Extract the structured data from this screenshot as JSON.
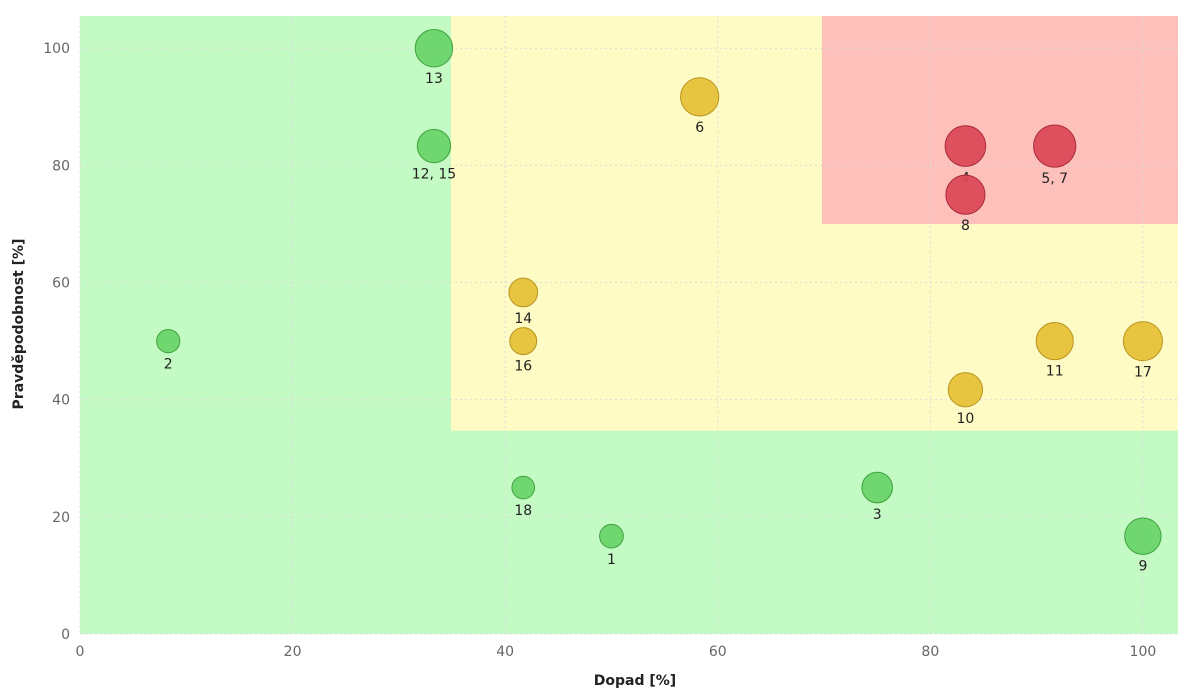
{
  "chart_data": {
    "type": "scatter",
    "title": "",
    "xlabel": "Dopad [%]",
    "ylabel": "Pravděpodobnost [%]",
    "xlim": [
      0,
      103.3
    ],
    "ylim": [
      0,
      105.5
    ],
    "xticks": [
      0,
      20,
      40,
      60,
      80,
      100
    ],
    "yticks": [
      0,
      20,
      40,
      60,
      80,
      100
    ],
    "grid": true,
    "legend": "none",
    "zones": [
      {
        "name": "low",
        "color": "#c4fac4",
        "x": [
          0,
          103.3
        ],
        "y": [
          0,
          105.5
        ]
      },
      {
        "name": "medium",
        "color": "#fefbc4",
        "x": [
          34.9,
          103.3
        ],
        "y": [
          34.7,
          105.5
        ]
      },
      {
        "name": "high",
        "color": "#fec0ba",
        "x": [
          69.8,
          103.3
        ],
        "y": [
          70,
          105.5
        ]
      }
    ],
    "points": [
      {
        "label": "1",
        "x": 50,
        "y": 16.7,
        "level": "low"
      },
      {
        "label": "2",
        "x": 8.3,
        "y": 50,
        "level": "low"
      },
      {
        "label": "3",
        "x": 75,
        "y": 25,
        "level": "low"
      },
      {
        "label": "4",
        "x": 83.3,
        "y": 83.3,
        "level": "high"
      },
      {
        "label": "5, 7",
        "x": 91.7,
        "y": 83.3,
        "level": "high"
      },
      {
        "label": "6",
        "x": 58.3,
        "y": 91.7,
        "level": "medium"
      },
      {
        "label": "8",
        "x": 83.3,
        "y": 75,
        "level": "high"
      },
      {
        "label": "9",
        "x": 100,
        "y": 16.7,
        "level": "low"
      },
      {
        "label": "10",
        "x": 83.3,
        "y": 41.7,
        "level": "medium"
      },
      {
        "label": "11",
        "x": 91.7,
        "y": 50,
        "level": "medium"
      },
      {
        "label": "12, 15",
        "x": 33.3,
        "y": 83.3,
        "level": "low"
      },
      {
        "label": "13",
        "x": 33.3,
        "y": 100,
        "level": "low"
      },
      {
        "label": "14",
        "x": 41.7,
        "y": 58.3,
        "level": "medium"
      },
      {
        "label": "16",
        "x": 41.7,
        "y": 50,
        "level": "medium"
      },
      {
        "label": "17",
        "x": 100,
        "y": 50,
        "level": "medium"
      },
      {
        "label": "18",
        "x": 41.7,
        "y": 25,
        "level": "low"
      }
    ],
    "level_colors": {
      "low": {
        "fill": "#6cd46c",
        "stroke": "#3ea23e"
      },
      "medium": {
        "fill": "#e6c23a",
        "stroke": "#b89420"
      },
      "high": {
        "fill": "#dd4a58",
        "stroke": "#a82a38"
      }
    }
  }
}
